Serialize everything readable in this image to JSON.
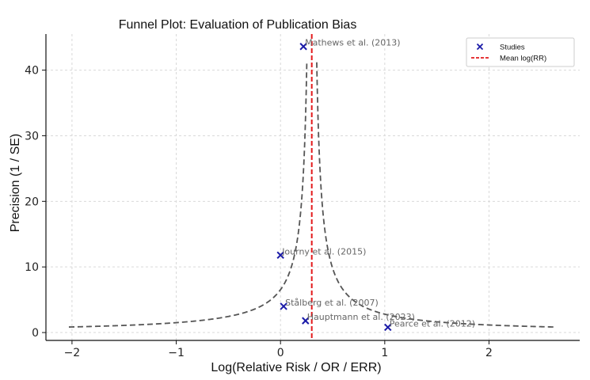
{
  "chart_data": {
    "type": "scatter",
    "title": "Funnel Plot: Evaluation of Publication Bias",
    "xlabel": "Log(Relative Risk / OR / ERR)",
    "ylabel": "Precision (1 / SE)",
    "xlim": [
      -2.25,
      2.87
    ],
    "ylim": [
      -1.2,
      45.5
    ],
    "xticks": [
      -2,
      -1,
      0,
      1,
      2
    ],
    "yticks": [
      0,
      10,
      20,
      30,
      40
    ],
    "grid": true,
    "legend_position": "top-right",
    "mean_log_rr": 0.3,
    "funnel": {
      "center": 0.3,
      "x_min": -2.03,
      "x_max": 2.63
    },
    "series": [
      {
        "name": "Studies",
        "marker": "x",
        "color": "#1a1aa8",
        "points": [
          {
            "label": "Mathews et al. (2013)",
            "x": 0.22,
            "y": 43.6
          },
          {
            "label": "Journy et al. (2015)",
            "x": 0.0,
            "y": 11.8
          },
          {
            "label": "Stålberg et al. (2007)",
            "x": 0.03,
            "y": 4.0
          },
          {
            "label": "Hauptmann et al. (2023)",
            "x": 0.24,
            "y": 1.8
          },
          {
            "label": "Pearce et al. (2012)",
            "x": 1.03,
            "y": 0.8
          }
        ]
      }
    ],
    "legend": [
      {
        "label": "Studies",
        "symbol": "x",
        "color": "#1a1aa8"
      },
      {
        "label": "Mean log(RR)",
        "symbol": "dashed-line",
        "color": "#e31a1c"
      }
    ],
    "funnel_color": "#555555",
    "mean_color": "#e31a1c"
  }
}
